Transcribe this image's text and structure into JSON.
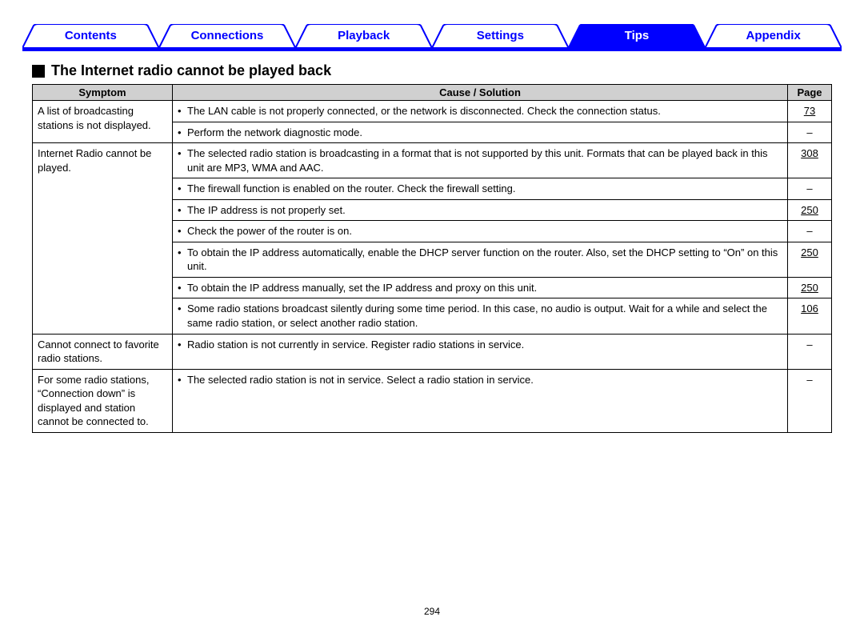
{
  "colors": {
    "tab_active_bg": "#0000ff",
    "tab_inactive_text": "#0000ff",
    "tab_active_text": "#ffffff",
    "tab_border": "#0000ff",
    "header_bg": "#d0d0d0",
    "cell_border": "#000000"
  },
  "tabs": [
    {
      "label": "Contents",
      "active": false
    },
    {
      "label": "Connections",
      "active": false
    },
    {
      "label": "Playback",
      "active": false
    },
    {
      "label": "Settings",
      "active": false
    },
    {
      "label": "Tips",
      "active": true
    },
    {
      "label": "Appendix",
      "active": false
    }
  ],
  "heading": "The Internet radio cannot be played back",
  "table": {
    "headers": {
      "symptom": "Symptom",
      "cause": "Cause / Solution",
      "page": "Page"
    },
    "groups": [
      {
        "symptom": "A list of broadcasting stations is not displayed.",
        "rows": [
          {
            "cause": "The LAN cable is not properly connected, or the network is disconnected. Check the connection status.",
            "page": "73",
            "link": true
          },
          {
            "cause": "Perform the network diagnostic mode.",
            "page": "–",
            "link": false
          }
        ]
      },
      {
        "symptom": "Internet Radio cannot be played.",
        "rows": [
          {
            "cause": "The selected radio station is broadcasting in a format that is not supported by this unit. Formats that can be played back in this unit are MP3, WMA and AAC.",
            "page": "308",
            "link": true
          },
          {
            "cause": "The firewall function is enabled on the router. Check the firewall setting.",
            "page": "–",
            "link": false
          },
          {
            "cause": "The IP address is not properly set.",
            "page": "250",
            "link": true
          },
          {
            "cause": "Check the power of the router is on.",
            "page": "–",
            "link": false
          },
          {
            "cause": "To obtain the IP address automatically, enable the DHCP server function on the router. Also, set the DHCP setting to “On” on this unit.",
            "page": "250",
            "link": true
          },
          {
            "cause": "To obtain the IP address manually, set the IP address and proxy on this unit.",
            "page": "250",
            "link": true
          },
          {
            "cause": "Some radio stations broadcast silently during some time period. In this case, no audio is output. Wait for a while and select the same radio station, or select another radio station.",
            "page": "106",
            "link": true
          }
        ]
      },
      {
        "symptom": "Cannot connect to favorite radio stations.",
        "rows": [
          {
            "cause": "Radio station is not currently in service. Register radio stations in service.",
            "page": "–",
            "link": false
          }
        ]
      },
      {
        "symptom": "For some radio stations, “Connection down” is displayed and station cannot be connected to.",
        "rows": [
          {
            "cause": "The selected radio station is not in service. Select a radio station in service.",
            "page": "–",
            "link": false
          }
        ]
      }
    ]
  },
  "page_number": "294"
}
